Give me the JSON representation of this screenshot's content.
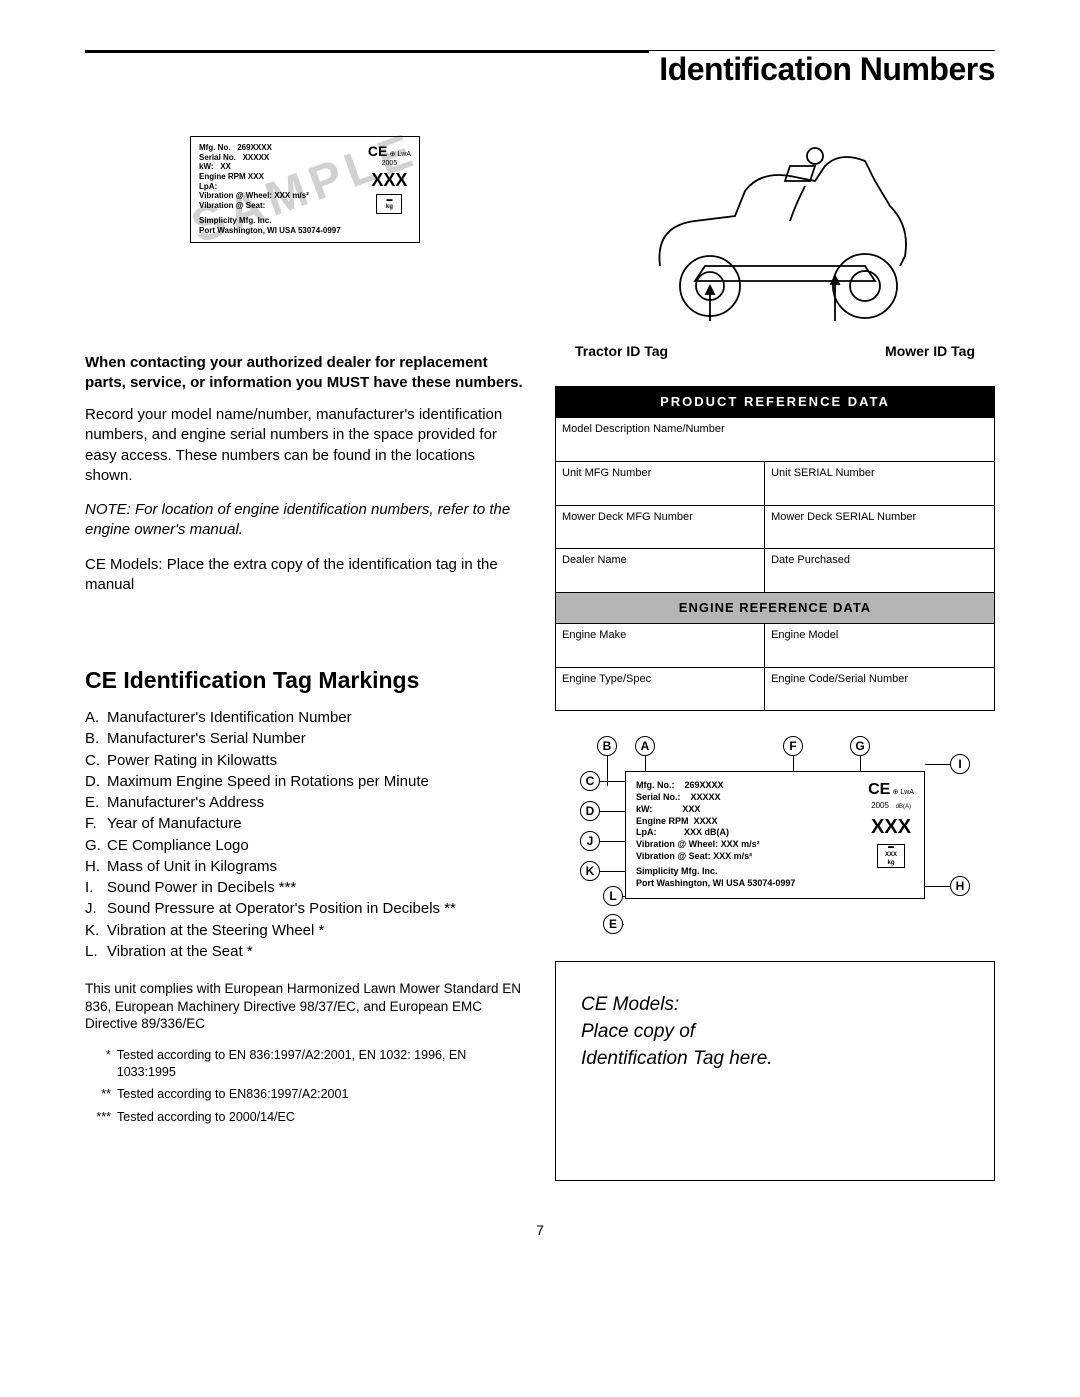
{
  "page": {
    "title": "Identification Numbers",
    "number": "7"
  },
  "sample_tag": {
    "overlay": "SAMPLE",
    "mfg_no_label": "Mfg. No.",
    "mfg_no_value": "269XXXX",
    "serial_label": "Serial No.",
    "serial_value": "XXXXX",
    "kw_label": "kW:",
    "kw_value": "XX",
    "rpm_label": "Engine RPM",
    "rpm_value": "XXX",
    "lpa_label": "LpA:",
    "vib_wheel_label": "Vibration @ Wheel: XXX m/s²",
    "vib_seat_label": "Vibration @ Seat:",
    "company": "Simplicity Mfg. Inc.",
    "address": "Port Washington, WI USA 53074-0997",
    "year": "2005",
    "xxx": "XXX",
    "lwa": "LwA",
    "dba": "dB(A)",
    "kg": "kg"
  },
  "intro": {
    "bold": "When contacting your authorized dealer for replacement parts, service, or information you MUST have these numbers.",
    "para1": "Record your model name/number, manufacturer's identification numbers, and engine serial numbers in the space provided for easy access.  These numbers can be found in the locations shown.",
    "note": "NOTE: For location of engine identification numbers, refer to the engine owner's manual.",
    "para2": "CE Models: Place the extra copy of the identification tag in the manual"
  },
  "markings": {
    "heading": "CE Identification Tag Markings",
    "items": [
      {
        "letter": "A.",
        "text": "Manufacturer's Identification Number"
      },
      {
        "letter": "B.",
        "text": "Manufacturer's Serial Number"
      },
      {
        "letter": "C.",
        "text": "Power Rating in Kilowatts"
      },
      {
        "letter": "D.",
        "text": "Maximum Engine Speed in Rotations per Minute"
      },
      {
        "letter": "E.",
        "text": "Manufacturer's Address"
      },
      {
        "letter": "F.",
        "text": "Year of Manufacture"
      },
      {
        "letter": "G.",
        "text": "CE Compliance Logo"
      },
      {
        "letter": "H.",
        "text": "Mass of Unit in Kilograms"
      },
      {
        "letter": "I.",
        "text": "Sound Power in Decibels ***"
      },
      {
        "letter": "J.",
        "text": "Sound Pressure at Operator's Position in Decibels **"
      },
      {
        "letter": "K.",
        "text": "Vibration at the Steering Wheel *"
      },
      {
        "letter": "L.",
        "text": "Vibration at the Seat *"
      }
    ]
  },
  "compliance": "This unit complies with European Harmonized Lawn Mower Standard EN 836, European Machinery Directive 98/37/EC, and European EMC Directive 89/336/EC",
  "footnotes": [
    {
      "stars": "*",
      "text": "Tested according to EN 836:1997/A2:2001, EN 1032: 1996, EN 1033:1995"
    },
    {
      "stars": "**",
      "text": "Tested according to EN836:1997/A2:2001"
    },
    {
      "stars": "***",
      "text": "Tested according to 2000/14/EC"
    }
  ],
  "figure": {
    "tractor_label": "Tractor ID Tag",
    "mower_label": "Mower ID Tag"
  },
  "ref_table": {
    "header1": "PRODUCT  REFERENCE  DATA",
    "header2": "ENGINE REFERENCE DATA",
    "cells": {
      "model_desc": "Model Description Name/Number",
      "unit_mfg": "Unit MFG Number",
      "unit_serial": "Unit SERIAL Number",
      "deck_mfg": "Mower Deck MFG Number",
      "deck_serial": "Mower Deck SERIAL Number",
      "dealer": "Dealer Name",
      "date": "Date Purchased",
      "engine_make": "Engine Make",
      "engine_model": "Engine Model",
      "engine_type": "Engine Type/Spec",
      "engine_code": "Engine Code/Serial Number"
    }
  },
  "tag_diagram": {
    "mfg_no": "Mfg. No.:",
    "mfg_val": "269XXXX",
    "serial": "Serial No.:",
    "serial_val": "XXXXX",
    "kw": "kW:",
    "kw_val": "XXX",
    "rpm": "Engine RPM",
    "rpm_val": "XXXX",
    "lpa": "LpA:",
    "lpa_val": "XXX dB(A)",
    "vibw": "Vibration @ Wheel:  XXX m/s²",
    "vibs": "Vibration @ Seat:    XXX m/s²",
    "company": "Simplicity Mfg. Inc.",
    "address": "Port Washington, WI USA 53074-0997",
    "year": "2005",
    "xxx": "XXX",
    "lwa": "LwA",
    "dba": "dB(A)",
    "massx": "XXX",
    "kg": "kg"
  },
  "callouts": [
    "A",
    "B",
    "C",
    "D",
    "E",
    "F",
    "G",
    "H",
    "I",
    "J",
    "K",
    "L"
  ],
  "placeholder": "CE Models:\nPlace copy of\nIdentification Tag here."
}
